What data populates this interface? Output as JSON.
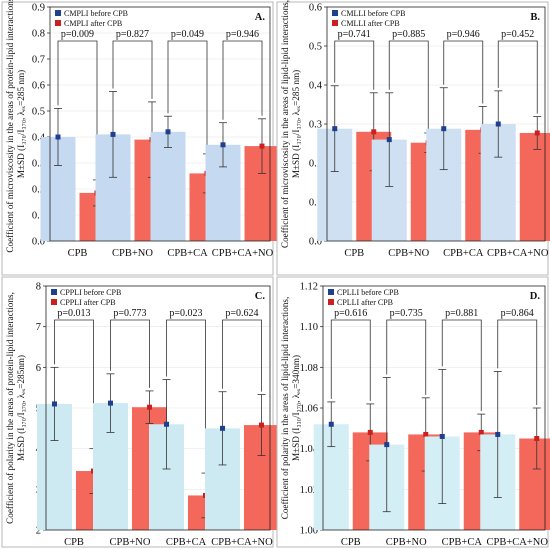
{
  "chart_data": [
    {
      "type": "bar",
      "panel_label": "A.",
      "categories": [
        "CPB",
        "CPB+NO",
        "CPB+CA",
        "CPB+CA+NO"
      ],
      "ylim": [
        0,
        0.9
      ],
      "yticks": [
        "0.0",
        "0.1",
        "0.2",
        "0.3",
        "0.4",
        "0.5",
        "0.6",
        "0.7",
        "0.8",
        "0.9"
      ],
      "ylabel_lines": [
        "Coefficient of microviscosity in the areas of protein-lipid interactions,",
        "M±SD (I₃₇₀/I₃₇₀, λₑₓ=285 nm)"
      ],
      "legend_position": "top-left",
      "series": [
        {
          "name": "CMPLI before CPB",
          "color": "#c5d9f0",
          "marker": "#1f3f8f",
          "values": [
            0.4,
            0.41,
            0.42,
            0.37
          ],
          "sd": [
            0.11,
            0.165,
            0.06,
            0.085
          ]
        },
        {
          "name": "CMPLI after CPB",
          "color": "#f4685c",
          "marker": "#cc1f1f",
          "values": [
            0.185,
            0.39,
            0.26,
            0.365
          ],
          "sd": [
            0.05,
            0.145,
            0.075,
            0.105
          ]
        }
      ],
      "pvalues": [
        "p=0.009",
        "p=0.827",
        "p=0.049",
        "p=0.946"
      ]
    },
    {
      "type": "bar",
      "panel_label": "B.",
      "categories": [
        "CPB",
        "CPB+NO",
        "CPB+CA",
        "CPB+CA+NO"
      ],
      "ylim": [
        0,
        0.6
      ],
      "yticks": [
        "0.0",
        "0.1",
        "0.2",
        "0.3",
        "0.4",
        "0.5",
        "0.6"
      ],
      "ylabel_lines": [
        "Coefficient of microviscosity in the areas of lipid-lipid interactions,",
        "M±SD (I₃₇₀/I₃₇₀, λₑₓ=285 nm)"
      ],
      "legend_position": "top-left",
      "series": [
        {
          "name": "CMLLI before CPB",
          "color": "#cfe0f2",
          "marker": "#1f3f8f",
          "values": [
            0.288,
            0.26,
            0.288,
            0.3
          ],
          "sd": [
            0.11,
            0.12,
            0.105,
            0.085
          ]
        },
        {
          "name": "CMLLI after CPB",
          "color": "#f4685c",
          "marker": "#cc1f1f",
          "values": [
            0.28,
            0.252,
            0.285,
            0.277
          ],
          "sd": [
            0.1,
            0.025,
            0.06,
            0.042
          ]
        }
      ],
      "pvalues": [
        "p=0.741",
        "p=0.885",
        "p=0.946",
        "p=0.452"
      ]
    },
    {
      "type": "bar",
      "panel_label": "C.",
      "categories": [
        "CPB",
        "CPB+NO",
        "CPB+CA",
        "CPB+CA+NO"
      ],
      "ylim": [
        2,
        8
      ],
      "yticks": [
        "2",
        "3",
        "4",
        "5",
        "6",
        "7",
        "8"
      ],
      "ylabel_lines": [
        "Coefficient of polarity in the areas of protein-lipid interactions,",
        "M±SD (I₃₇₀/I₃₇₀, λₑₓ=285nm)"
      ],
      "legend_position": "top-left",
      "series": [
        {
          "name": "CPPLI before CPB",
          "color": "#cdeaf2",
          "marker": "#1f3f8f",
          "values": [
            5.1,
            5.12,
            4.6,
            4.5
          ],
          "sd": [
            0.9,
            0.72,
            1.1,
            0.9
          ]
        },
        {
          "name": "CPPLI after CPB",
          "color": "#f4685c",
          "marker": "#cc1f1f",
          "values": [
            3.45,
            5.02,
            2.85,
            4.58
          ],
          "sd": [
            0.55,
            0.4,
            0.55,
            0.75
          ]
        }
      ],
      "pvalues": [
        "p=0.013",
        "p=0.773",
        "p=0.023",
        "p=0.624"
      ]
    },
    {
      "type": "bar",
      "panel_label": "D.",
      "categories": [
        "CPB",
        "CPB+NO",
        "CPB+CA",
        "CPB+CA+NO"
      ],
      "ylim": [
        1.0,
        1.12
      ],
      "yticks": [
        "1.00",
        "1.02",
        "1.04",
        "1.06",
        "1.08",
        "1.10",
        "1.12"
      ],
      "ylabel_lines": [
        "Coefficient of polarity in the areas of lipid-lipid interactions,",
        "M±SD (I₃₃₀/I₃₇₀, λₑₓ=340nm)"
      ],
      "legend_position": "top-left",
      "series": [
        {
          "name": "CPLLI before CPB",
          "color": "#d4eef5",
          "marker": "#1f3f8f",
          "values": [
            1.052,
            1.042,
            1.046,
            1.047
          ],
          "sd": [
            0.011,
            0.033,
            0.033,
            0.031
          ]
        },
        {
          "name": "CPLLI after CPB",
          "color": "#f4685c",
          "marker": "#cc1f1f",
          "values": [
            1.048,
            1.047,
            1.048,
            1.045
          ],
          "sd": [
            0.014,
            0.018,
            0.009,
            0.015
          ]
        }
      ],
      "pvalues": [
        "p=0.616",
        "p=0.735",
        "p=0.881",
        "p=0.864"
      ]
    }
  ]
}
